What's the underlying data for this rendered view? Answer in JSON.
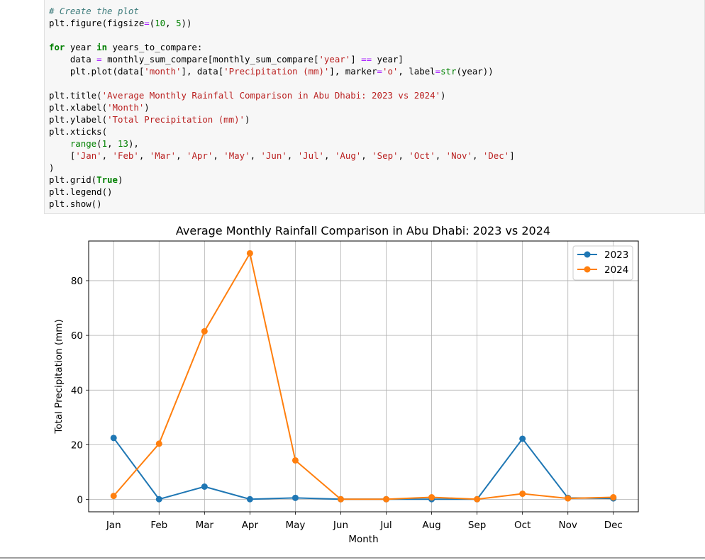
{
  "code_cell": {
    "lines": [
      [
        {
          "t": "comment",
          "v": "# Create the plot"
        }
      ],
      [
        {
          "t": "name",
          "v": "plt.figure(figsize"
        },
        {
          "t": "op",
          "v": "="
        },
        {
          "t": "name",
          "v": "("
        },
        {
          "t": "num",
          "v": "10"
        },
        {
          "t": "name",
          "v": ", "
        },
        {
          "t": "num",
          "v": "5"
        },
        {
          "t": "name",
          "v": "))"
        }
      ],
      [],
      [
        {
          "t": "kw",
          "v": "for"
        },
        {
          "t": "name",
          "v": " year "
        },
        {
          "t": "kw",
          "v": "in"
        },
        {
          "t": "name",
          "v": " years_to_compare:"
        }
      ],
      [
        {
          "t": "name",
          "v": "    data "
        },
        {
          "t": "op",
          "v": "="
        },
        {
          "t": "name",
          "v": " monthly_sum_compare[monthly_sum_compare["
        },
        {
          "t": "str",
          "v": "'year'"
        },
        {
          "t": "name",
          "v": "] "
        },
        {
          "t": "op",
          "v": "=="
        },
        {
          "t": "name",
          "v": " year]"
        }
      ],
      [
        {
          "t": "name",
          "v": "    plt.plot(data["
        },
        {
          "t": "str",
          "v": "'month'"
        },
        {
          "t": "name",
          "v": "], data["
        },
        {
          "t": "str",
          "v": "'Precipitation (mm)'"
        },
        {
          "t": "name",
          "v": "], marker"
        },
        {
          "t": "op",
          "v": "="
        },
        {
          "t": "str",
          "v": "'o'"
        },
        {
          "t": "name",
          "v": ", label"
        },
        {
          "t": "op",
          "v": "="
        },
        {
          "t": "builtin",
          "v": "str"
        },
        {
          "t": "name",
          "v": "(year))"
        }
      ],
      [],
      [
        {
          "t": "name",
          "v": "plt.title("
        },
        {
          "t": "str",
          "v": "'Average Monthly Rainfall Comparison in Abu Dhabi: 2023 vs 2024'"
        },
        {
          "t": "name",
          "v": ")"
        }
      ],
      [
        {
          "t": "name",
          "v": "plt.xlabel("
        },
        {
          "t": "str",
          "v": "'Month'"
        },
        {
          "t": "name",
          "v": ")"
        }
      ],
      [
        {
          "t": "name",
          "v": "plt.ylabel("
        },
        {
          "t": "str",
          "v": "'Total Precipitation (mm)'"
        },
        {
          "t": "name",
          "v": ")"
        }
      ],
      [
        {
          "t": "name",
          "v": "plt.xticks("
        }
      ],
      [
        {
          "t": "name",
          "v": "    "
        },
        {
          "t": "builtin",
          "v": "range"
        },
        {
          "t": "name",
          "v": "("
        },
        {
          "t": "num",
          "v": "1"
        },
        {
          "t": "name",
          "v": ", "
        },
        {
          "t": "num",
          "v": "13"
        },
        {
          "t": "name",
          "v": "),"
        }
      ],
      [
        {
          "t": "name",
          "v": "    ["
        },
        {
          "t": "str",
          "v": "'Jan'"
        },
        {
          "t": "name",
          "v": ", "
        },
        {
          "t": "str",
          "v": "'Feb'"
        },
        {
          "t": "name",
          "v": ", "
        },
        {
          "t": "str",
          "v": "'Mar'"
        },
        {
          "t": "name",
          "v": ", "
        },
        {
          "t": "str",
          "v": "'Apr'"
        },
        {
          "t": "name",
          "v": ", "
        },
        {
          "t": "str",
          "v": "'May'"
        },
        {
          "t": "name",
          "v": ", "
        },
        {
          "t": "str",
          "v": "'Jun'"
        },
        {
          "t": "name",
          "v": ", "
        },
        {
          "t": "str",
          "v": "'Jul'"
        },
        {
          "t": "name",
          "v": ", "
        },
        {
          "t": "str",
          "v": "'Aug'"
        },
        {
          "t": "name",
          "v": ", "
        },
        {
          "t": "str",
          "v": "'Sep'"
        },
        {
          "t": "name",
          "v": ", "
        },
        {
          "t": "str",
          "v": "'Oct'"
        },
        {
          "t": "name",
          "v": ", "
        },
        {
          "t": "str",
          "v": "'Nov'"
        },
        {
          "t": "name",
          "v": ", "
        },
        {
          "t": "str",
          "v": "'Dec'"
        },
        {
          "t": "name",
          "v": "]"
        }
      ],
      [
        {
          "t": "name",
          "v": ")"
        }
      ],
      [
        {
          "t": "name",
          "v": "plt.grid("
        },
        {
          "t": "kw",
          "v": "True"
        },
        {
          "t": "name",
          "v": ")"
        }
      ],
      [
        {
          "t": "name",
          "v": "plt.legend()"
        }
      ],
      [
        {
          "t": "name",
          "v": "plt.show()"
        }
      ]
    ]
  },
  "chart_data": {
    "type": "line",
    "title": "Average Monthly Rainfall Comparison in Abu Dhabi: 2023 vs 2024",
    "xlabel": "Month",
    "ylabel": "Total Precipitation (mm)",
    "categories": [
      "Jan",
      "Feb",
      "Mar",
      "Apr",
      "May",
      "Jun",
      "Jul",
      "Aug",
      "Sep",
      "Oct",
      "Nov",
      "Dec"
    ],
    "yticks": [
      0,
      20,
      40,
      60,
      80
    ],
    "ylim": [
      -4.5,
      94.5
    ],
    "xlim": [
      0.45,
      12.55
    ],
    "grid": true,
    "legend_position": "top-right",
    "series": [
      {
        "name": "2023",
        "color": "#1f77b4",
        "values": [
          22.5,
          0.1,
          4.7,
          0.1,
          0.6,
          0.1,
          0.1,
          0.1,
          0.1,
          22.2,
          0.6,
          0.4
        ]
      },
      {
        "name": "2024",
        "color": "#ff7f0e",
        "values": [
          1.3,
          20.4,
          61.5,
          90.0,
          14.3,
          0.1,
          0.1,
          0.8,
          0.1,
          2.1,
          0.4,
          0.8
        ]
      }
    ]
  }
}
